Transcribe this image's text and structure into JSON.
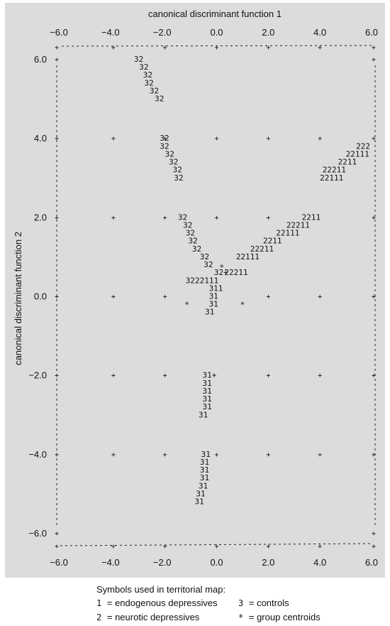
{
  "chart_data": {
    "type": "territorial-map",
    "xlabel": "canonical discriminant function 1",
    "ylabel": "canonical discriminant function 2",
    "xlim": [
      -6.0,
      6.0
    ],
    "ylim": [
      -6.0,
      6.0
    ],
    "x_ticks": [
      "−6.0",
      "−4.0",
      "−2.0",
      "0.0",
      "2.0",
      "4.0",
      "6.0"
    ],
    "y_ticks": [
      "6.0",
      "4.0",
      "2.0",
      "0.0",
      "−2.0",
      "−4.0",
      "−6.0"
    ],
    "x_tick_values": [
      -6,
      -4,
      -2,
      0,
      2,
      4,
      6
    ],
    "y_tick_values": [
      6,
      4,
      2,
      0,
      -2,
      -4,
      -6
    ],
    "boundary_rows": [
      {
        "y": 6.0,
        "x": -3.2,
        "text": "32"
      },
      {
        "y": 5.8,
        "x": -3.0,
        "text": "32"
      },
      {
        "y": 5.6,
        "x": -2.85,
        "text": "32"
      },
      {
        "y": 5.4,
        "x": -2.8,
        "text": "32"
      },
      {
        "y": 5.2,
        "x": -2.6,
        "text": "32"
      },
      {
        "y": 5.0,
        "x": -2.4,
        "text": "32"
      },
      {
        "y": 4.0,
        "x": -2.2,
        "text": "32"
      },
      {
        "y": 3.8,
        "x": -2.2,
        "text": "32"
      },
      {
        "y": 3.6,
        "x": -2.0,
        "text": "32"
      },
      {
        "y": 3.4,
        "x": -1.85,
        "text": "32"
      },
      {
        "y": 3.2,
        "x": -1.7,
        "text": "32"
      },
      {
        "y": 3.0,
        "x": -1.65,
        "text": "32"
      },
      {
        "y": 2.0,
        "x": -1.5,
        "text": "32"
      },
      {
        "y": 1.8,
        "x": -1.3,
        "text": "32"
      },
      {
        "y": 1.6,
        "x": -1.2,
        "text": "32"
      },
      {
        "y": 1.4,
        "x": -1.1,
        "text": "32"
      },
      {
        "y": 1.2,
        "x": -0.95,
        "text": "32"
      },
      {
        "y": 1.0,
        "x": -0.65,
        "text": "32"
      },
      {
        "y": 0.8,
        "x": -0.5,
        "text": "32"
      },
      {
        "y": 0.6,
        "x": -0.1,
        "text": "32+"
      },
      {
        "y": 0.4,
        "x": -1.2,
        "text": "3222111"
      },
      {
        "y": 0.2,
        "x": -0.3,
        "text": "311"
      },
      {
        "y": 0.0,
        "x": -0.3,
        "text": "31"
      },
      {
        "y": -0.2,
        "x": -0.3,
        "text": "31"
      },
      {
        "y": -0.4,
        "x": -0.45,
        "text": "31"
      },
      {
        "y": -2.0,
        "x": -0.55,
        "text": "31+"
      },
      {
        "y": -2.2,
        "x": -0.55,
        "text": "31"
      },
      {
        "y": -2.4,
        "x": -0.55,
        "text": "31"
      },
      {
        "y": -2.6,
        "x": -0.55,
        "text": "31"
      },
      {
        "y": -2.8,
        "x": -0.55,
        "text": "31"
      },
      {
        "y": -3.0,
        "x": -0.7,
        "text": "31"
      },
      {
        "y": -4.0,
        "x": -0.6,
        "text": "31"
      },
      {
        "y": -4.2,
        "x": -0.65,
        "text": "31"
      },
      {
        "y": -4.4,
        "x": -0.65,
        "text": "31"
      },
      {
        "y": -4.6,
        "x": -0.65,
        "text": "31"
      },
      {
        "y": -4.8,
        "x": -0.7,
        "text": "31"
      },
      {
        "y": -5.0,
        "x": -0.8,
        "text": "31"
      },
      {
        "y": -5.2,
        "x": -0.85,
        "text": "31"
      }
    ],
    "right_rows": [
      {
        "y": 3.8,
        "x": 5.4,
        "text": "222"
      },
      {
        "y": 3.6,
        "x": 5.0,
        "text": "22111"
      },
      {
        "y": 3.4,
        "x": 4.7,
        "text": "2211"
      },
      {
        "y": 3.2,
        "x": 4.1,
        "text": "22211"
      },
      {
        "y": 3.0,
        "x": 4.0,
        "text": "22111"
      },
      {
        "y": 2.0,
        "x": 3.3,
        "text": "2211"
      },
      {
        "y": 1.8,
        "x": 2.7,
        "text": "22211"
      },
      {
        "y": 1.6,
        "x": 2.3,
        "text": "22111"
      },
      {
        "y": 1.4,
        "x": 1.8,
        "text": "2211"
      },
      {
        "y": 1.2,
        "x": 1.3,
        "text": "22211"
      },
      {
        "y": 1.0,
        "x": 0.75,
        "text": "22111"
      },
      {
        "y": 0.6,
        "x": 0.3,
        "text": "22211"
      }
    ],
    "centroids": [
      {
        "x": 0.2,
        "y": 0.75,
        "text": "*"
      },
      {
        "x": -1.15,
        "y": -0.2,
        "text": "*"
      },
      {
        "x": 1.0,
        "y": -0.2,
        "text": "*"
      }
    ],
    "grid_plus": [
      [
        -6,
        4
      ],
      [
        -4,
        4
      ],
      [
        -2,
        4
      ],
      [
        0,
        4
      ],
      [
        2,
        4
      ],
      [
        4,
        4
      ],
      [
        6,
        4
      ],
      [
        -6,
        2
      ],
      [
        -4,
        2
      ],
      [
        -2,
        2
      ],
      [
        0,
        2
      ],
      [
        2,
        2
      ],
      [
        6,
        2
      ],
      [
        -6,
        0
      ],
      [
        -4,
        0
      ],
      [
        -2,
        0
      ],
      [
        2,
        0
      ],
      [
        4,
        0
      ],
      [
        6,
        0
      ],
      [
        -6,
        -2
      ],
      [
        -4,
        -2
      ],
      [
        -2,
        -2
      ],
      [
        2,
        -2
      ],
      [
        4,
        -2
      ],
      [
        6,
        -2
      ],
      [
        -6,
        -4
      ],
      [
        -4,
        -4
      ],
      [
        -2,
        -4
      ],
      [
        0,
        -4
      ],
      [
        2,
        -4
      ],
      [
        4,
        -4
      ],
      [
        6,
        -4
      ],
      [
        -6,
        6
      ],
      [
        -4,
        6
      ],
      [
        -2,
        6
      ],
      [
        0,
        6
      ],
      [
        2,
        6
      ],
      [
        4,
        6
      ],
      [
        6,
        6
      ],
      [
        -6,
        -6
      ],
      [
        -4,
        -6
      ],
      [
        -2,
        -6
      ],
      [
        0,
        -6
      ],
      [
        2,
        -6
      ],
      [
        4,
        -6
      ],
      [
        6,
        -6
      ]
    ],
    "grid": false
  },
  "legend": {
    "title": "Symbols used in territorial map:",
    "items": [
      {
        "symbol": "1",
        "eq": "=",
        "label": "endogenous depressives"
      },
      {
        "symbol": "3",
        "eq": "=",
        "label": "controls"
      },
      {
        "symbol": "2",
        "eq": "=",
        "label": "neurotic depressives"
      },
      {
        "symbol": "*",
        "eq": "=",
        "label": "group centroids"
      }
    ]
  }
}
